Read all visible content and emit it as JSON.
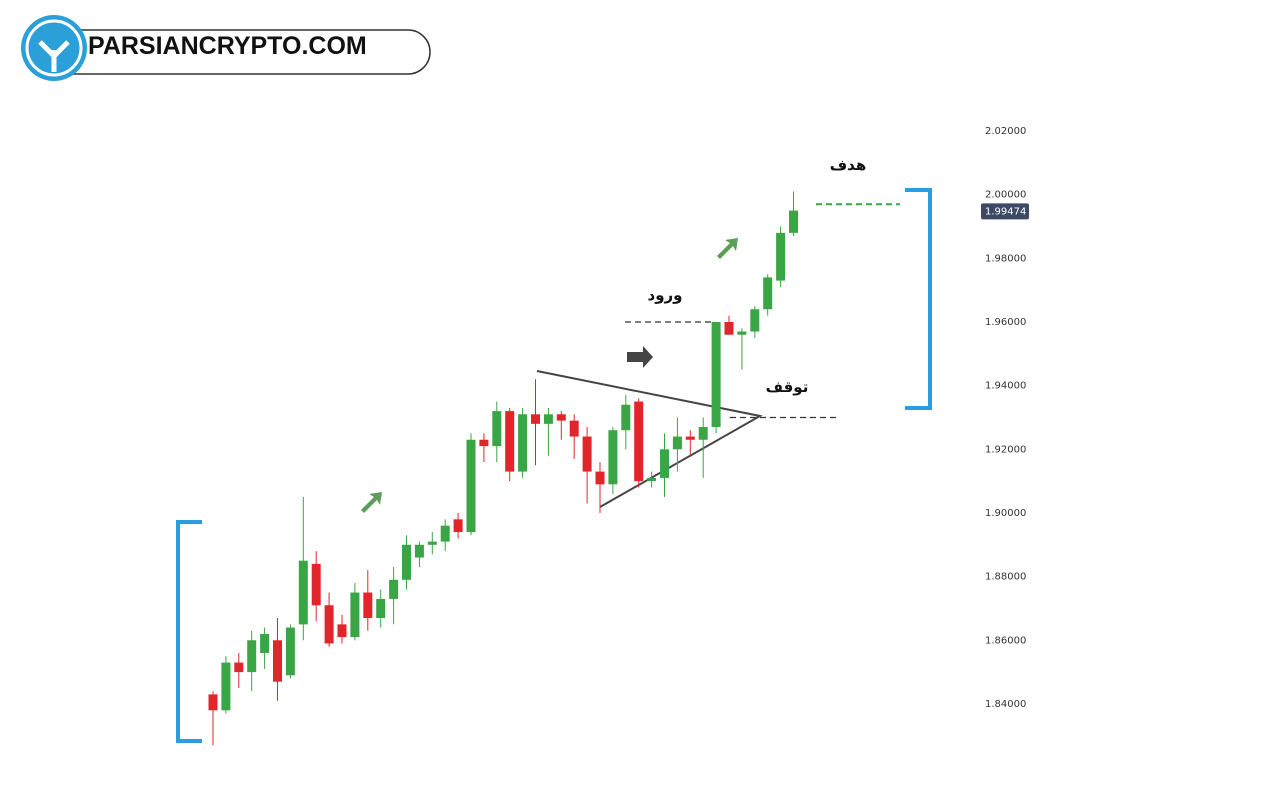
{
  "brand": "PARSIANCRYPTO.COM",
  "chart_data": {
    "type": "candlestick",
    "ylim": [
      1.82,
      2.03
    ],
    "yticks": [
      {
        "value": 2.02,
        "label": "2.02000"
      },
      {
        "value": 2.0,
        "label": "2.00000"
      },
      {
        "value": 1.98,
        "label": "1.98000"
      },
      {
        "value": 1.96,
        "label": "1.96000"
      },
      {
        "value": 1.94,
        "label": "1.94000"
      },
      {
        "value": 1.92,
        "label": "1.92000"
      },
      {
        "value": 1.9,
        "label": "1.90000"
      },
      {
        "value": 1.88,
        "label": "1.88000"
      },
      {
        "value": 1.86,
        "label": "1.86000"
      },
      {
        "value": 1.84,
        "label": "1.84000"
      }
    ],
    "current_price": 1.99474,
    "up_color": "#3aa544",
    "down_color": "#e0262a",
    "open": [
      1.843,
      1.838,
      1.853,
      1.85,
      1.856,
      1.86,
      1.849,
      1.865,
      1.884,
      1.871,
      1.865,
      1.861,
      1.875,
      1.867,
      1.873,
      1.879,
      1.886,
      1.89,
      1.891,
      1.898,
      1.894,
      1.923,
      1.921,
      1.932,
      1.913,
      1.931,
      1.928,
      1.931,
      1.929,
      1.924,
      1.913,
      1.909,
      1.926,
      1.935,
      1.91,
      1.911,
      1.92,
      1.924,
      1.923,
      1.927,
      1.96,
      1.956,
      1.957,
      1.964,
      1.973,
      1.988
    ],
    "high": [
      1.844,
      1.855,
      1.856,
      1.863,
      1.864,
      1.867,
      1.865,
      1.905,
      1.888,
      1.875,
      1.868,
      1.878,
      1.882,
      1.876,
      1.883,
      1.893,
      1.891,
      1.894,
      1.898,
      1.9,
      1.925,
      1.925,
      1.935,
      1.933,
      1.933,
      1.942,
      1.933,
      1.932,
      1.931,
      1.927,
      1.916,
      1.927,
      1.937,
      1.936,
      1.913,
      1.925,
      1.93,
      1.926,
      1.93,
      1.96,
      1.962,
      1.958,
      1.965,
      1.975,
      1.99,
      2.001
    ],
    "low": [
      1.827,
      1.837,
      1.845,
      1.844,
      1.851,
      1.841,
      1.848,
      1.86,
      1.866,
      1.858,
      1.859,
      1.86,
      1.863,
      1.864,
      1.865,
      1.876,
      1.883,
      1.887,
      1.888,
      1.892,
      1.893,
      1.916,
      1.916,
      1.91,
      1.911,
      1.915,
      1.918,
      1.923,
      1.917,
      1.903,
      1.9,
      1.906,
      1.92,
      1.908,
      1.908,
      1.905,
      1.913,
      1.918,
      1.911,
      1.925,
      1.956,
      1.945,
      1.955,
      1.962,
      1.971,
      1.987
    ],
    "close": [
      1.838,
      1.853,
      1.85,
      1.86,
      1.862,
      1.847,
      1.864,
      1.885,
      1.871,
      1.859,
      1.861,
      1.875,
      1.867,
      1.873,
      1.879,
      1.89,
      1.89,
      1.891,
      1.896,
      1.894,
      1.923,
      1.921,
      1.932,
      1.913,
      1.931,
      1.928,
      1.931,
      1.929,
      1.924,
      1.913,
      1.909,
      1.926,
      1.934,
      1.91,
      1.911,
      1.92,
      1.924,
      1.923,
      1.927,
      1.96,
      1.956,
      1.957,
      1.964,
      1.974,
      1.988,
      1.995
    ],
    "levels": [
      {
        "label": "هدف",
        "value": 1.997,
        "color": "#3aa544"
      },
      {
        "label": "ورود",
        "value": 1.96,
        "color": "#333333"
      },
      {
        "label": "توقف",
        "value": 1.93,
        "color": "#333333"
      }
    ]
  }
}
